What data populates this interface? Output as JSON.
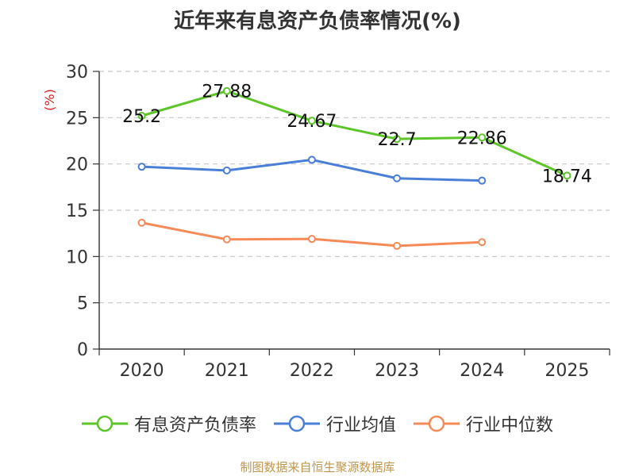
{
  "chart_data": {
    "type": "line",
    "title": "近年来有息资产负债率情况(%)",
    "ylabel": "(%)",
    "xlabel": "",
    "categories": [
      "2020",
      "2021",
      "2022",
      "2023",
      "2024",
      "2025"
    ],
    "ylim": [
      0,
      30
    ],
    "yticks": [
      0,
      5,
      10,
      15,
      20,
      25,
      30
    ],
    "grid": true,
    "legend_position": "bottom",
    "series": [
      {
        "name": "有息资产负债率",
        "color": "#5cc527",
        "values": [
          25.2,
          27.88,
          24.67,
          22.7,
          22.86,
          18.74
        ],
        "labels": [
          "25.2",
          "27.88",
          "24.67",
          "22.7",
          "22.86",
          "18.74"
        ]
      },
      {
        "name": "行业均值",
        "color": "#4a7fd8",
        "values": [
          19.7,
          19.3,
          20.45,
          18.45,
          18.2,
          null
        ]
      },
      {
        "name": "行业中位数",
        "color": "#f78a57",
        "values": [
          13.65,
          11.85,
          11.9,
          11.15,
          11.55,
          null
        ]
      }
    ]
  },
  "source": "制图数据来自恒生聚源数据库"
}
